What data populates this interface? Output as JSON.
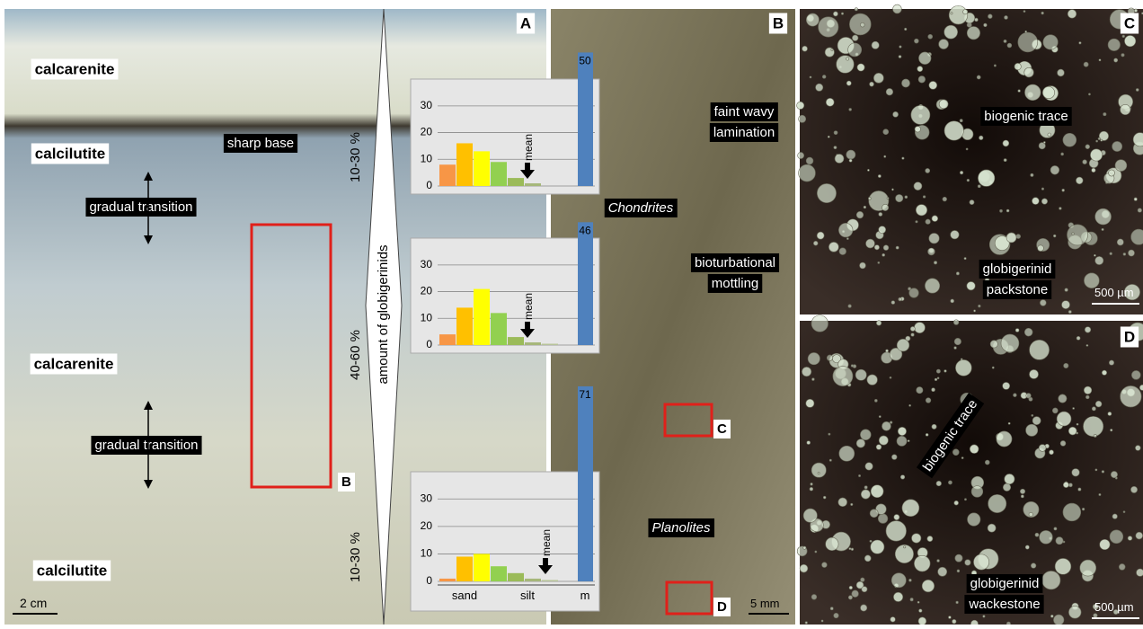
{
  "panel_a": {
    "letter": "A",
    "labels": [
      "calcarenite",
      "calcilutite",
      "calcarenite",
      "calcilutite"
    ],
    "notes": [
      "gradual transition",
      "sharp base",
      "gradual transition"
    ],
    "box_label": "B",
    "scale": "2 cm",
    "arrow_label": "amount of globigerinids",
    "percent_labels": [
      "10-30 %",
      "40-60 %",
      "10-30 %"
    ]
  },
  "histograms": {
    "colors": [
      "#f79646",
      "#ffc000",
      "#ffff00",
      "#92d050",
      "#9bbb59",
      "#a6b77a",
      "#b8c49a"
    ],
    "mud_color": "#4f81bd",
    "yticks": [
      0,
      10,
      20,
      30
    ],
    "ylim": [
      0,
      35
    ],
    "x_labels": [
      "sand",
      "silt",
      "m"
    ],
    "items": [
      {
        "values": [
          8,
          16,
          13,
          9,
          3,
          1,
          0
        ],
        "mud": 50
      },
      {
        "values": [
          4,
          14,
          21,
          12,
          3,
          1,
          0.5
        ],
        "mud": 46
      },
      {
        "values": [
          1,
          9,
          10,
          5.5,
          3,
          1,
          0.5
        ],
        "mud": 71
      }
    ],
    "marker": "mean"
  },
  "panel_b": {
    "letter": "B",
    "notes": [
      [
        "faint wavy",
        "lamination"
      ],
      [
        "Chondrites"
      ],
      [
        "bioturbational",
        "mottling"
      ],
      [
        "Planolites"
      ]
    ],
    "box_labels": [
      "C",
      "D"
    ],
    "scale": "5 mm"
  },
  "panel_c": {
    "letter": "C",
    "notes": [
      [
        "biogenic trace"
      ],
      [
        "globigerinid",
        "packstone"
      ]
    ],
    "scale": "500 µm"
  },
  "panel_d": {
    "letter": "D",
    "notes": [
      [
        "biogenic trace"
      ],
      [
        "globigerinid",
        "wackestone"
      ]
    ],
    "scale": "500 µm"
  }
}
